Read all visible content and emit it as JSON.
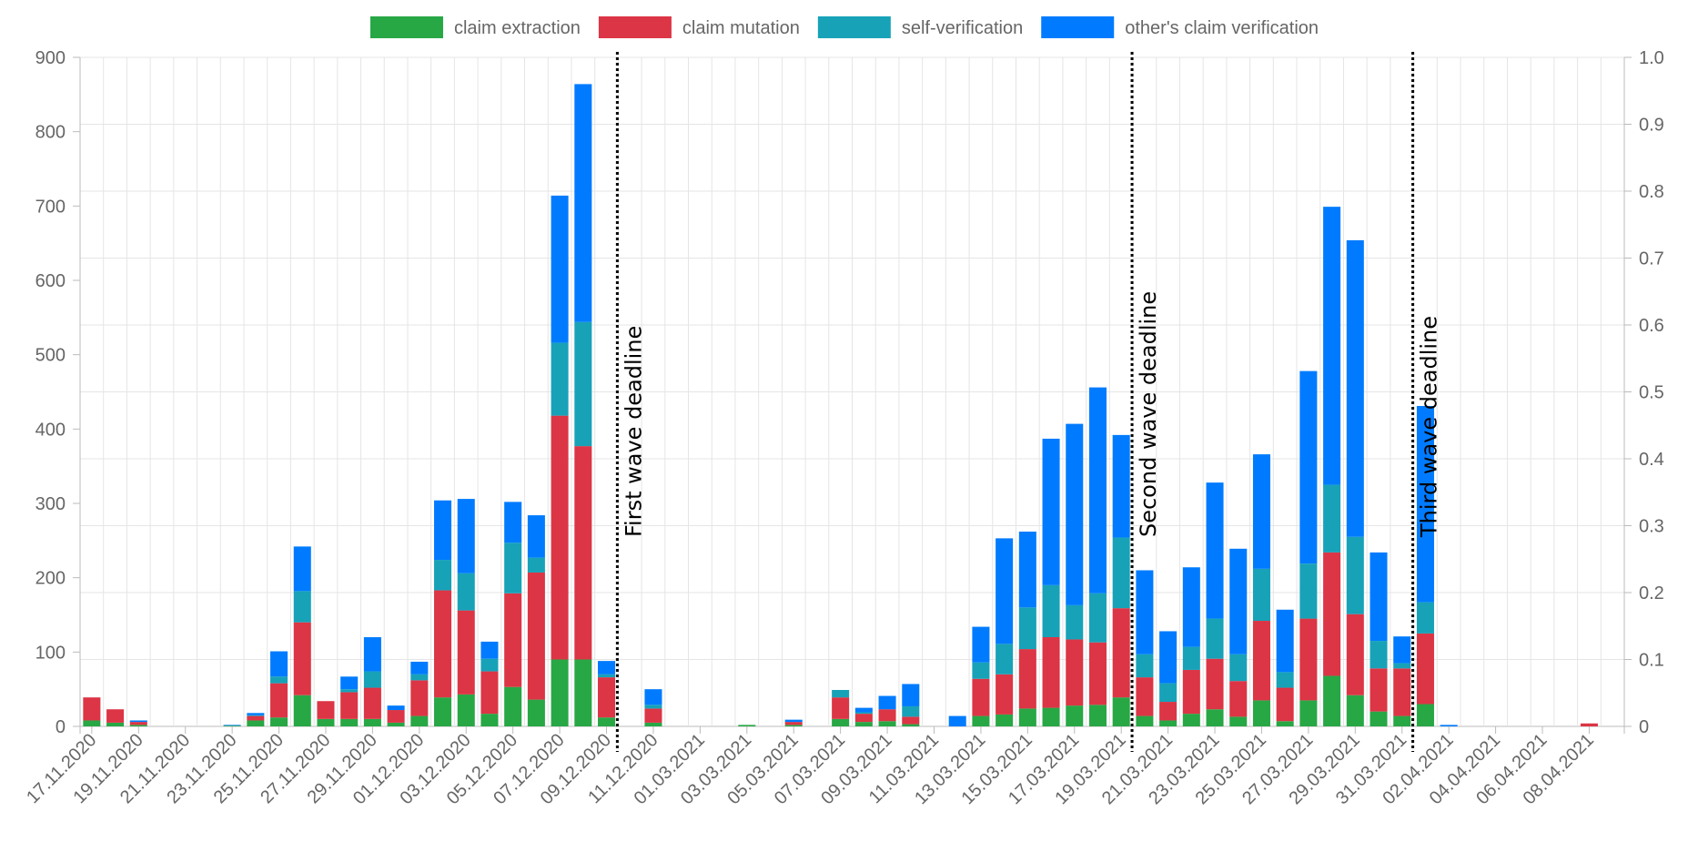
{
  "chart_data": {
    "type": "bar",
    "stacked": true,
    "legend_position": "top",
    "grid": true,
    "categories": [
      "17.11.2020",
      "18.11.2020",
      "19.11.2020",
      "20.11.2020",
      "21.11.2020",
      "22.11.2020",
      "23.11.2020",
      "24.11.2020",
      "25.11.2020",
      "26.11.2020",
      "27.11.2020",
      "28.11.2020",
      "29.11.2020",
      "30.11.2020",
      "01.12.2020",
      "02.12.2020",
      "03.12.2020",
      "04.12.2020",
      "05.12.2020",
      "06.12.2020",
      "07.12.2020",
      "08.12.2020",
      "09.12.2020",
      "10.12.2020",
      "11.12.2020",
      "12.12.2020",
      "01.03.2021",
      "02.03.2021",
      "03.03.2021",
      "04.03.2021",
      "05.03.2021",
      "06.03.2021",
      "07.03.2021",
      "08.03.2021",
      "09.03.2021",
      "10.03.2021",
      "11.03.2021",
      "12.03.2021",
      "13.03.2021",
      "14.03.2021",
      "15.03.2021",
      "16.03.2021",
      "17.03.2021",
      "18.03.2021",
      "19.03.2021",
      "20.03.2021",
      "21.03.2021",
      "22.03.2021",
      "23.03.2021",
      "24.03.2021",
      "25.03.2021",
      "26.03.2021",
      "27.03.2021",
      "28.03.2021",
      "29.03.2021",
      "30.03.2021",
      "31.03.2021",
      "01.04.2021",
      "02.04.2021",
      "03.04.2021",
      "04.04.2021",
      "05.04.2021",
      "06.04.2021",
      "07.04.2021",
      "08.04.2021",
      "09.04.2021"
    ],
    "x_tick_labels": [
      "17.11.2020",
      "19.11.2020",
      "21.11.2020",
      "23.11.2020",
      "25.11.2020",
      "27.11.2020",
      "29.11.2020",
      "01.12.2020",
      "03.12.2020",
      "05.12.2020",
      "07.12.2020",
      "09.12.2020",
      "11.12.2020",
      "01.03.2021",
      "03.03.2021",
      "05.03.2021",
      "07.03.2021",
      "09.03.2021",
      "11.03.2021",
      "13.03.2021",
      "15.03.2021",
      "17.03.2021",
      "19.03.2021",
      "21.03.2021",
      "23.03.2021",
      "25.03.2021",
      "27.03.2021",
      "29.03.2021",
      "31.03.2021",
      "02.04.2021",
      "04.04.2021",
      "06.04.2021",
      "08.04.2021"
    ],
    "series": [
      {
        "name": "claim extraction",
        "color": "#28a745",
        "values": [
          8,
          5,
          2,
          0,
          0,
          0,
          1,
          8,
          12,
          42,
          10,
          10,
          10,
          5,
          14,
          39,
          43,
          17,
          53,
          36,
          90,
          90,
          12,
          0,
          5,
          0,
          0,
          0,
          2,
          0,
          2,
          0,
          10,
          6,
          7,
          3,
          0,
          0,
          14,
          16,
          24,
          25,
          28,
          29,
          39,
          14,
          8,
          17,
          23,
          13,
          35,
          7,
          35,
          68,
          42,
          20,
          14,
          30,
          0,
          0,
          0,
          0,
          0,
          0,
          0,
          0
        ]
      },
      {
        "name": "claim mutation",
        "color": "#dc3545",
        "values": [
          31,
          18,
          4,
          0,
          0,
          0,
          0,
          6,
          46,
          98,
          24,
          36,
          42,
          17,
          48,
          144,
          113,
          57,
          126,
          171,
          328,
          287,
          54,
          0,
          19,
          0,
          0,
          0,
          0,
          0,
          4,
          0,
          29,
          11,
          16,
          10,
          0,
          0,
          50,
          54,
          80,
          95,
          89,
          84,
          120,
          52,
          25,
          59,
          68,
          48,
          107,
          45,
          110,
          166,
          109,
          58,
          64,
          95,
          0,
          0,
          0,
          0,
          0,
          0,
          4,
          0
        ]
      },
      {
        "name": "self-verification",
        "color": "#17a2b8",
        "values": [
          0,
          0,
          0,
          0,
          0,
          0,
          0,
          1,
          9,
          42,
          0,
          4,
          22,
          0,
          8,
          41,
          50,
          17,
          68,
          20,
          98,
          167,
          4,
          0,
          5,
          0,
          0,
          0,
          0,
          0,
          0,
          0,
          10,
          2,
          0,
          14,
          0,
          0,
          22,
          41,
          56,
          70,
          46,
          66,
          95,
          31,
          25,
          31,
          54,
          36,
          70,
          21,
          74,
          91,
          104,
          37,
          7,
          42,
          0,
          0,
          0,
          0,
          0,
          0,
          0,
          0
        ]
      },
      {
        "name": "other's claim verification",
        "color": "#007bff",
        "values": [
          0,
          0,
          2,
          0,
          0,
          0,
          1,
          3,
          34,
          60,
          0,
          17,
          46,
          6,
          17,
          80,
          100,
          23,
          55,
          57,
          198,
          320,
          18,
          0,
          21,
          0,
          0,
          0,
          0,
          0,
          3,
          0,
          0,
          6,
          18,
          30,
          0,
          14,
          48,
          142,
          102,
          197,
          244,
          277,
          138,
          113,
          70,
          107,
          183,
          142,
          154,
          84,
          259,
          374,
          399,
          119,
          36,
          264,
          2,
          0,
          0,
          0,
          0,
          0,
          0,
          0
        ]
      }
    ],
    "_note_last_bars": "",
    "ylim": [
      0,
      900
    ],
    "y_ticks": [
      0,
      100,
      200,
      300,
      400,
      500,
      600,
      700,
      800,
      900
    ],
    "y2lim": [
      0,
      1.0
    ],
    "y2_ticks": [
      "0",
      "0.1",
      "0.2",
      "0.3",
      "0.4",
      "0.5",
      "0.6",
      "0.7",
      "0.8",
      "0.9",
      "1.0"
    ],
    "annotations": [
      {
        "label": "First wave deadline",
        "after_category": "09.12.2020"
      },
      {
        "label": "Second wave deadline",
        "after_category": "19.03.2021"
      },
      {
        "label": "Third wave deadline",
        "after_category": "31.03.2021"
      }
    ],
    "xlabel": "",
    "ylabel": ""
  }
}
